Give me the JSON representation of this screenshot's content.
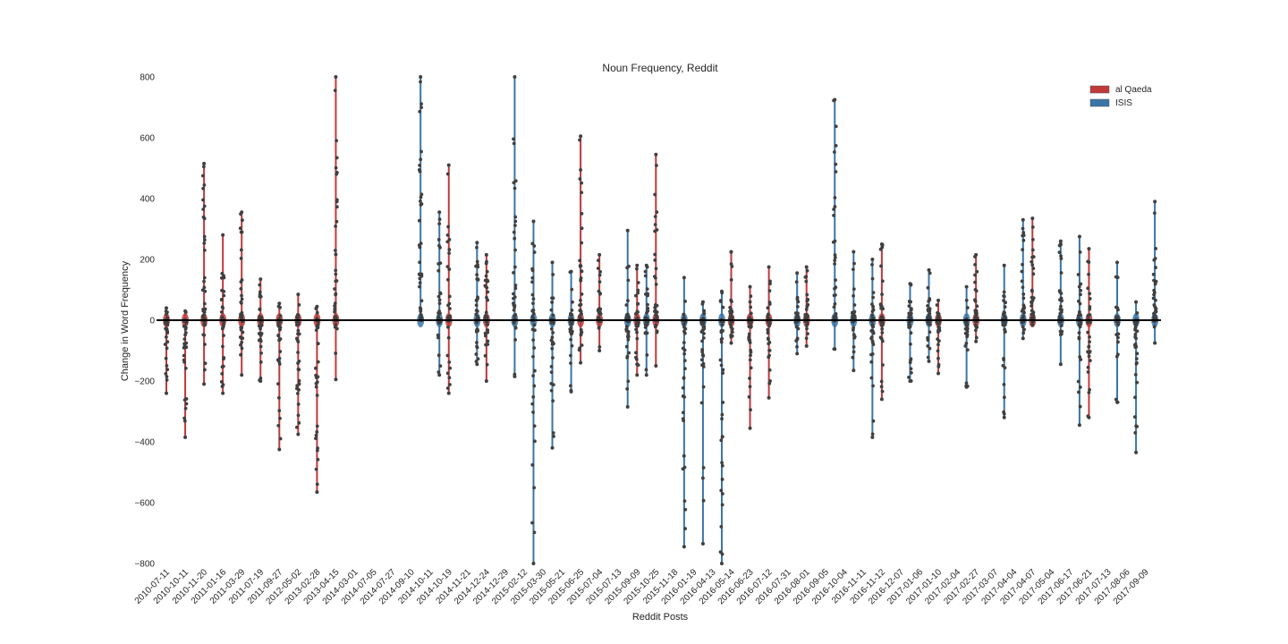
{
  "chart_data": {
    "type": "strip",
    "title": "Noun Frequency, Reddit",
    "xlabel": "Reddit Posts",
    "ylabel": "Change in Word Frequency",
    "ylim": [
      -800,
      800
    ],
    "yticks": [
      -800,
      -600,
      -400,
      -200,
      0,
      200,
      400,
      600,
      800
    ],
    "ytick_labels": [
      "−800",
      "−600",
      "−400",
      "−200",
      "0",
      "200",
      "400",
      "600",
      "800"
    ],
    "grid": false,
    "legend_position": "top-right",
    "series": [
      {
        "name": "al Qaeda",
        "color": "#c0393b"
      },
      {
        "name": "ISIS",
        "color": "#3a75a8"
      }
    ],
    "dot_color": "#404040",
    "zero_line_color": "#000000",
    "categories": [
      "2010-07-11",
      "2010-10-11",
      "2010-11-20",
      "2011-01-16",
      "2011-03-29",
      "2011-07-19",
      "2011-09-27",
      "2012-05-02",
      "2013-02-28",
      "2013-04-15",
      "2014-03-01",
      "2014-07-05",
      "2014-07-27",
      "2014-09-10",
      "2014-10-11",
      "2014-10-19",
      "2014-11-21",
      "2014-12-24",
      "2014-12-29",
      "2015-02-12",
      "2015-03-30",
      "2015-05-21",
      "2015-06-25",
      "2015-07-04",
      "2015-07-13",
      "2015-09-09",
      "2015-10-25",
      "2015-11-18",
      "2016-01-19",
      "2016-04-13",
      "2016-05-14",
      "2016-06-23",
      "2016-07-12",
      "2016-07-31",
      "2016-08-01",
      "2016-09-05",
      "2016-10-04",
      "2016-11-11",
      "2016-11-12",
      "2016-12-07",
      "2017-01-06",
      "2017-01-10",
      "2017-02-04",
      "2017-02-27",
      "2017-03-07",
      "2017-04-04",
      "2017-04-07",
      "2017-05-04",
      "2017-06-17",
      "2017-06-21",
      "2017-07-13",
      "2017-08-06",
      "2017-09-09"
    ],
    "points": [
      {
        "pos": 0,
        "group": "al Qaeda",
        "min": -240,
        "max": 40
      },
      {
        "pos": 1,
        "group": "al Qaeda",
        "min": -385,
        "max": 30
      },
      {
        "pos": 2,
        "group": "al Qaeda",
        "min": -210,
        "max": 515
      },
      {
        "pos": 3,
        "group": "al Qaeda",
        "min": -240,
        "max": 280
      },
      {
        "pos": 4,
        "group": "al Qaeda",
        "min": -180,
        "max": 355
      },
      {
        "pos": 5,
        "group": "al Qaeda",
        "min": -200,
        "max": 135
      },
      {
        "pos": 6,
        "group": "al Qaeda",
        "min": -425,
        "max": 55
      },
      {
        "pos": 7,
        "group": "al Qaeda",
        "min": -375,
        "max": 85
      },
      {
        "pos": 8,
        "group": "al Qaeda",
        "min": -565,
        "max": 45
      },
      {
        "pos": 9,
        "group": "al Qaeda",
        "min": -195,
        "max": 800
      },
      {
        "pos": 13.5,
        "group": "ISIS",
        "min": 0,
        "max": 800
      },
      {
        "pos": 14.5,
        "group": "ISIS",
        "min": -180,
        "max": 355
      },
      {
        "pos": 15,
        "group": "al Qaeda",
        "min": -240,
        "max": 510
      },
      {
        "pos": 16.5,
        "group": "ISIS",
        "min": -145,
        "max": 255
      },
      {
        "pos": 17,
        "group": "al Qaeda",
        "min": -200,
        "max": 215
      },
      {
        "pos": 18.5,
        "group": "ISIS",
        "min": -185,
        "max": 800
      },
      {
        "pos": 19.5,
        "group": "ISIS",
        "min": -800,
        "max": 325
      },
      {
        "pos": 20.5,
        "group": "ISIS",
        "min": -420,
        "max": 190
      },
      {
        "pos": 21.5,
        "group": "ISIS",
        "min": -235,
        "max": 160
      },
      {
        "pos": 22,
        "group": "al Qaeda",
        "min": -140,
        "max": 605
      },
      {
        "pos": 23,
        "group": "al Qaeda",
        "min": -100,
        "max": 215
      },
      {
        "pos": 24.5,
        "group": "ISIS",
        "min": -285,
        "max": 295
      },
      {
        "pos": 25,
        "group": "al Qaeda",
        "min": -180,
        "max": 180
      },
      {
        "pos": 25.5,
        "group": "ISIS",
        "min": -180,
        "max": 180
      },
      {
        "pos": 26,
        "group": "al Qaeda",
        "min": -150,
        "max": 545
      },
      {
        "pos": 27.5,
        "group": "ISIS",
        "min": -745,
        "max": 140
      },
      {
        "pos": 28.5,
        "group": "ISIS",
        "min": -735,
        "max": 60
      },
      {
        "pos": 29.5,
        "group": "ISIS",
        "min": -800,
        "max": 95
      },
      {
        "pos": 30,
        "group": "al Qaeda",
        "min": -75,
        "max": 225
      },
      {
        "pos": 31,
        "group": "al Qaeda",
        "min": -355,
        "max": 110
      },
      {
        "pos": 32,
        "group": "al Qaeda",
        "min": -255,
        "max": 175
      },
      {
        "pos": 33.5,
        "group": "ISIS",
        "min": -110,
        "max": 155
      },
      {
        "pos": 34,
        "group": "al Qaeda",
        "min": -85,
        "max": 175
      },
      {
        "pos": 35.5,
        "group": "ISIS",
        "min": -95,
        "max": 725
      },
      {
        "pos": 36.5,
        "group": "ISIS",
        "min": -165,
        "max": 225
      },
      {
        "pos": 37.5,
        "group": "ISIS",
        "min": -385,
        "max": 200
      },
      {
        "pos": 38,
        "group": "al Qaeda",
        "min": -260,
        "max": 250
      },
      {
        "pos": 39.5,
        "group": "ISIS",
        "min": -200,
        "max": 120
      },
      {
        "pos": 40.5,
        "group": "ISIS",
        "min": -135,
        "max": 165
      },
      {
        "pos": 41,
        "group": "al Qaeda",
        "min": -175,
        "max": 65
      },
      {
        "pos": 42.5,
        "group": "ISIS",
        "min": -220,
        "max": 110
      },
      {
        "pos": 43,
        "group": "al Qaeda",
        "min": -70,
        "max": 215
      },
      {
        "pos": 44.5,
        "group": "ISIS",
        "min": -320,
        "max": 180
      },
      {
        "pos": 45.5,
        "group": "ISIS",
        "min": -60,
        "max": 330
      },
      {
        "pos": 46,
        "group": "al Qaeda",
        "min": -15,
        "max": 335
      },
      {
        "pos": 47.5,
        "group": "ISIS",
        "min": -145,
        "max": 260
      },
      {
        "pos": 48.5,
        "group": "ISIS",
        "min": -345,
        "max": 275
      },
      {
        "pos": 49,
        "group": "al Qaeda",
        "min": -320,
        "max": 235
      },
      {
        "pos": 50.5,
        "group": "ISIS",
        "min": -270,
        "max": 190
      },
      {
        "pos": 51.5,
        "group": "ISIS",
        "min": -435,
        "max": 60
      },
      {
        "pos": 52.5,
        "group": "ISIS",
        "min": -75,
        "max": 390
      }
    ]
  }
}
